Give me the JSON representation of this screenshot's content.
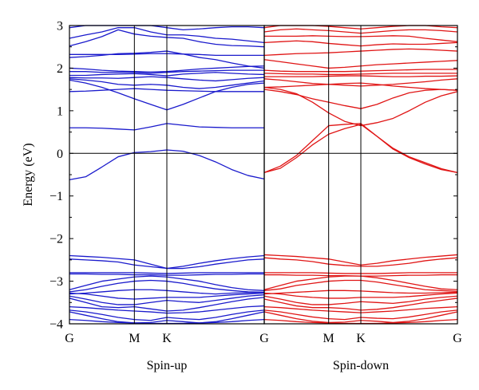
{
  "chart_data": {
    "type": "line",
    "ylabel": "Energy (eV)",
    "ylim": [
      -4,
      3
    ],
    "y_ticks": [
      "3",
      "2",
      "1",
      "0",
      "−1",
      "−2",
      "−3",
      "−4"
    ],
    "y_tick_values": [
      3,
      2,
      1,
      0,
      -1,
      -2,
      -3,
      -4
    ],
    "x_kpoints": [
      "G",
      "M",
      "K",
      "G"
    ],
    "x_kpoint_positions": [
      0,
      1,
      1.5,
      3
    ],
    "fermi_level": 0,
    "panels": [
      {
        "name": "Spin-up",
        "color": "#1a1acc",
        "x": [
          0,
          0.25,
          0.5,
          0.75,
          1,
          1.25,
          1.5,
          1.75,
          2,
          2.25,
          2.5,
          2.75,
          3
        ],
        "series": [
          [
            2.95,
            3.0,
            3.0,
            3.0,
            3.0,
            3.0,
            2.95,
            2.9,
            2.92,
            2.95,
            2.97,
            2.97,
            2.95
          ],
          [
            2.7,
            2.78,
            2.85,
            2.95,
            2.95,
            2.85,
            2.78,
            2.78,
            2.75,
            2.7,
            2.68,
            2.64,
            2.6
          ],
          [
            2.52,
            2.62,
            2.74,
            2.9,
            2.8,
            2.75,
            2.72,
            2.7,
            2.62,
            2.56,
            2.53,
            2.52,
            2.5
          ],
          [
            2.32,
            2.32,
            2.32,
            2.32,
            2.33,
            2.34,
            2.34,
            2.33,
            2.32,
            2.3,
            2.3,
            2.3,
            2.3
          ],
          [
            2.25,
            2.27,
            2.3,
            2.34,
            2.35,
            2.37,
            2.4,
            2.33,
            2.25,
            2.2,
            2.12,
            2.05,
            2.0
          ],
          [
            2.0,
            1.98,
            1.95,
            1.93,
            1.92,
            1.91,
            1.92,
            1.95,
            1.98,
            2.0,
            2.02,
            2.04,
            2.05
          ],
          [
            1.92,
            1.92,
            1.9,
            1.9,
            1.9,
            1.88,
            1.9,
            1.92,
            1.93,
            1.94,
            1.95,
            1.95,
            1.95
          ],
          [
            1.83,
            1.83,
            1.85,
            1.86,
            1.87,
            1.85,
            1.82,
            1.86,
            1.88,
            1.9,
            1.88,
            1.86,
            1.85
          ],
          [
            1.78,
            1.77,
            1.77,
            1.76,
            1.78,
            1.8,
            1.78,
            1.75,
            1.72,
            1.7,
            1.73,
            1.76,
            1.78
          ],
          [
            1.75,
            1.72,
            1.68,
            1.62,
            1.6,
            1.62,
            1.6,
            1.55,
            1.52,
            1.55,
            1.6,
            1.65,
            1.7
          ],
          [
            1.72,
            1.65,
            1.55,
            1.42,
            1.28,
            1.15,
            1.02,
            1.15,
            1.3,
            1.45,
            1.55,
            1.62,
            1.65
          ],
          [
            1.45,
            1.46,
            1.48,
            1.5,
            1.52,
            1.5,
            1.48,
            1.47,
            1.46,
            1.45,
            1.45,
            1.45,
            1.45
          ],
          [
            0.6,
            0.6,
            0.59,
            0.57,
            0.55,
            0.62,
            0.7,
            0.66,
            0.62,
            0.61,
            0.6,
            0.6,
            0.6
          ],
          [
            -0.62,
            -0.55,
            -0.32,
            -0.08,
            0.02,
            0.04,
            0.08,
            0.05,
            -0.05,
            -0.2,
            -0.38,
            -0.52,
            -0.6
          ],
          [
            -2.4,
            -2.42,
            -2.44,
            -2.47,
            -2.5,
            -2.6,
            -2.7,
            -2.65,
            -2.58,
            -2.52,
            -2.47,
            -2.43,
            -2.4
          ],
          [
            -2.48,
            -2.5,
            -2.52,
            -2.55,
            -2.62,
            -2.66,
            -2.7,
            -2.7,
            -2.66,
            -2.6,
            -2.55,
            -2.5,
            -2.48
          ],
          [
            -2.8,
            -2.8,
            -2.8,
            -2.8,
            -2.8,
            -2.81,
            -2.82,
            -2.81,
            -2.8,
            -2.8,
            -2.8,
            -2.8,
            -2.8
          ],
          [
            -2.83,
            -2.83,
            -2.84,
            -2.84,
            -2.85,
            -2.85,
            -2.86,
            -2.86,
            -2.85,
            -2.84,
            -2.84,
            -2.83,
            -2.83
          ],
          [
            -3.2,
            -3.1,
            -3.0,
            -2.95,
            -2.9,
            -2.88,
            -2.9,
            -2.95,
            -3.0,
            -3.08,
            -3.15,
            -3.2,
            -3.22
          ],
          [
            -3.25,
            -3.2,
            -3.12,
            -3.05,
            -3.0,
            -2.98,
            -3.0,
            -3.05,
            -3.12,
            -3.18,
            -3.22,
            -3.25,
            -3.26
          ],
          [
            -3.3,
            -3.28,
            -3.25,
            -3.22,
            -3.2,
            -3.2,
            -3.22,
            -3.25,
            -3.28,
            -3.3,
            -3.28,
            -3.27,
            -3.26
          ],
          [
            -3.28,
            -3.3,
            -3.35,
            -3.4,
            -3.42,
            -3.4,
            -3.38,
            -3.38,
            -3.38,
            -3.35,
            -3.32,
            -3.3,
            -3.28
          ],
          [
            -3.35,
            -3.42,
            -3.5,
            -3.55,
            -3.55,
            -3.5,
            -3.45,
            -3.48,
            -3.5,
            -3.45,
            -3.4,
            -3.35,
            -3.32
          ],
          [
            -3.4,
            -3.5,
            -3.6,
            -3.62,
            -3.6,
            -3.65,
            -3.7,
            -3.68,
            -3.62,
            -3.55,
            -3.48,
            -3.42,
            -3.38
          ],
          [
            -3.6,
            -3.62,
            -3.65,
            -3.68,
            -3.7,
            -3.72,
            -3.75,
            -3.74,
            -3.72,
            -3.68,
            -3.64,
            -3.6,
            -3.58
          ],
          [
            -3.68,
            -3.72,
            -3.78,
            -3.85,
            -3.9,
            -3.92,
            -3.85,
            -3.88,
            -3.9,
            -3.85,
            -3.78,
            -3.72,
            -3.68
          ],
          [
            -3.72,
            -3.8,
            -3.88,
            -3.95,
            -3.98,
            -3.97,
            -3.92,
            -3.95,
            -3.98,
            -3.95,
            -3.88,
            -3.8,
            -3.72
          ],
          [
            -3.9,
            -3.92,
            -3.95,
            -3.97,
            -3.98,
            -3.99,
            -3.99,
            -3.99,
            -3.98,
            -3.97,
            -3.95,
            -3.92,
            -3.9
          ]
        ]
      },
      {
        "name": "Spin-down",
        "color": "#e01515",
        "x": [
          0,
          0.25,
          0.5,
          0.75,
          1,
          1.25,
          1.5,
          1.75,
          2,
          2.25,
          2.5,
          2.75,
          3
        ],
        "series": [
          [
            2.95,
            3.0,
            3.0,
            3.0,
            2.98,
            2.95,
            2.92,
            2.95,
            2.98,
            3.0,
            3.0,
            2.97,
            2.95
          ],
          [
            2.85,
            2.9,
            2.92,
            2.9,
            2.88,
            2.85,
            2.82,
            2.85,
            2.88,
            2.9,
            2.9,
            2.88,
            2.85
          ],
          [
            2.75,
            2.75,
            2.75,
            2.76,
            2.75,
            2.74,
            2.74,
            2.75,
            2.76,
            2.75,
            2.7,
            2.66,
            2.62
          ],
          [
            2.6,
            2.62,
            2.64,
            2.62,
            2.58,
            2.55,
            2.52,
            2.55,
            2.57,
            2.56,
            2.56,
            2.58,
            2.6
          ],
          [
            2.3,
            2.32,
            2.34,
            2.35,
            2.36,
            2.38,
            2.4,
            2.42,
            2.44,
            2.45,
            2.44,
            2.42,
            2.4
          ],
          [
            2.2,
            2.15,
            2.1,
            2.05,
            2.0,
            2.02,
            2.05,
            2.08,
            2.1,
            2.12,
            2.14,
            2.16,
            2.18
          ],
          [
            1.95,
            1.93,
            1.92,
            1.92,
            1.92,
            1.92,
            1.93,
            1.94,
            1.95,
            1.96,
            1.97,
            1.97,
            1.97
          ],
          [
            1.88,
            1.87,
            1.86,
            1.86,
            1.85,
            1.85,
            1.86,
            1.87,
            1.88,
            1.88,
            1.88,
            1.88,
            1.88
          ],
          [
            1.8,
            1.8,
            1.8,
            1.8,
            1.81,
            1.82,
            1.82,
            1.81,
            1.8,
            1.8,
            1.81,
            1.81,
            1.82
          ],
          [
            1.75,
            1.72,
            1.68,
            1.64,
            1.62,
            1.6,
            1.58,
            1.6,
            1.62,
            1.65,
            1.68,
            1.72,
            1.75
          ],
          [
            1.55,
            1.56,
            1.58,
            1.6,
            1.62,
            1.64,
            1.65,
            1.62,
            1.58,
            1.55,
            1.52,
            1.5,
            1.48
          ],
          [
            1.55,
            1.5,
            1.4,
            1.2,
            0.95,
            0.75,
            0.65,
            0.72,
            0.82,
            1.0,
            1.2,
            1.35,
            1.45
          ],
          [
            1.5,
            1.45,
            1.38,
            1.28,
            1.2,
            1.12,
            1.05,
            1.15,
            1.3,
            1.42,
            1.48,
            1.5,
            1.48
          ],
          [
            -0.45,
            -0.35,
            -0.1,
            0.2,
            0.45,
            0.58,
            0.68,
            0.4,
            0.1,
            -0.1,
            -0.25,
            -0.38,
            -0.45
          ],
          [
            -0.45,
            -0.3,
            -0.05,
            0.3,
            0.65,
            0.68,
            0.7,
            0.4,
            0.12,
            -0.08,
            -0.22,
            -0.36,
            -0.45
          ],
          [
            -2.38,
            -2.4,
            -2.42,
            -2.45,
            -2.48,
            -2.55,
            -2.62,
            -2.58,
            -2.52,
            -2.48,
            -2.44,
            -2.41,
            -2.38
          ],
          [
            -2.45,
            -2.48,
            -2.5,
            -2.54,
            -2.6,
            -2.63,
            -2.65,
            -2.65,
            -2.62,
            -2.58,
            -2.52,
            -2.48,
            -2.45
          ],
          [
            -2.8,
            -2.8,
            -2.8,
            -2.8,
            -2.81,
            -2.82,
            -2.82,
            -2.82,
            -2.81,
            -2.8,
            -2.8,
            -2.8,
            -2.8
          ],
          [
            -2.85,
            -2.85,
            -2.86,
            -2.86,
            -2.87,
            -2.87,
            -2.88,
            -2.88,
            -2.87,
            -2.86,
            -2.86,
            -2.85,
            -2.85
          ],
          [
            -3.2,
            -3.1,
            -3.0,
            -2.95,
            -2.9,
            -2.88,
            -2.88,
            -2.92,
            -2.98,
            -3.05,
            -3.12,
            -3.18,
            -3.2
          ],
          [
            -3.22,
            -3.18,
            -3.1,
            -3.05,
            -3.0,
            -2.98,
            -2.98,
            -3.02,
            -3.08,
            -3.14,
            -3.2,
            -3.22,
            -3.24
          ],
          [
            -3.3,
            -3.28,
            -3.26,
            -3.24,
            -3.22,
            -3.22,
            -3.23,
            -3.25,
            -3.27,
            -3.28,
            -3.28,
            -3.27,
            -3.26
          ],
          [
            -3.28,
            -3.3,
            -3.35,
            -3.38,
            -3.4,
            -3.4,
            -3.38,
            -3.38,
            -3.38,
            -3.36,
            -3.33,
            -3.3,
            -3.28
          ],
          [
            -3.35,
            -3.42,
            -3.5,
            -3.55,
            -3.55,
            -3.52,
            -3.48,
            -3.5,
            -3.52,
            -3.48,
            -3.42,
            -3.38,
            -3.35
          ],
          [
            -3.42,
            -3.5,
            -3.58,
            -3.62,
            -3.62,
            -3.64,
            -3.68,
            -3.66,
            -3.62,
            -3.56,
            -3.5,
            -3.45,
            -3.4
          ],
          [
            -3.6,
            -3.62,
            -3.65,
            -3.68,
            -3.7,
            -3.72,
            -3.74,
            -3.72,
            -3.7,
            -3.67,
            -3.64,
            -3.62,
            -3.6
          ],
          [
            -3.68,
            -3.72,
            -3.78,
            -3.84,
            -3.88,
            -3.9,
            -3.85,
            -3.87,
            -3.88,
            -3.84,
            -3.78,
            -3.72,
            -3.68
          ],
          [
            -3.72,
            -3.8,
            -3.88,
            -3.94,
            -3.97,
            -3.96,
            -3.92,
            -3.94,
            -3.97,
            -3.94,
            -3.88,
            -3.8,
            -3.72
          ],
          [
            -3.9,
            -3.92,
            -3.95,
            -3.97,
            -3.98,
            -3.99,
            -3.99,
            -3.99,
            -3.98,
            -3.97,
            -3.95,
            -3.92,
            -3.9
          ]
        ]
      }
    ]
  }
}
